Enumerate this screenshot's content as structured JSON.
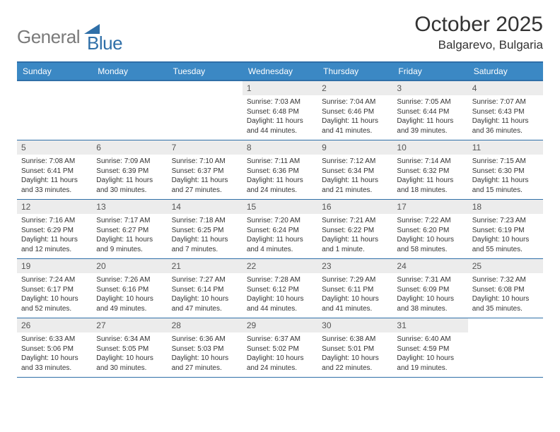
{
  "logo": {
    "part1": "General",
    "part2": "Blue"
  },
  "title": "October 2025",
  "subtitle": "Balgarevo, Bulgaria",
  "colors": {
    "header_bg": "#3b88c4",
    "border": "#2f6fa8",
    "daynum_bg": "#ececec",
    "logo_gray": "#7a7a7a",
    "logo_blue": "#2f6fa8"
  },
  "days_of_week": [
    "Sunday",
    "Monday",
    "Tuesday",
    "Wednesday",
    "Thursday",
    "Friday",
    "Saturday"
  ],
  "weeks": [
    [
      null,
      null,
      null,
      {
        "n": "1",
        "sunrise": "7:03 AM",
        "sunset": "6:48 PM",
        "daylight": "11 hours and 44 minutes."
      },
      {
        "n": "2",
        "sunrise": "7:04 AM",
        "sunset": "6:46 PM",
        "daylight": "11 hours and 41 minutes."
      },
      {
        "n": "3",
        "sunrise": "7:05 AM",
        "sunset": "6:44 PM",
        "daylight": "11 hours and 39 minutes."
      },
      {
        "n": "4",
        "sunrise": "7:07 AM",
        "sunset": "6:43 PM",
        "daylight": "11 hours and 36 minutes."
      }
    ],
    [
      {
        "n": "5",
        "sunrise": "7:08 AM",
        "sunset": "6:41 PM",
        "daylight": "11 hours and 33 minutes."
      },
      {
        "n": "6",
        "sunrise": "7:09 AM",
        "sunset": "6:39 PM",
        "daylight": "11 hours and 30 minutes."
      },
      {
        "n": "7",
        "sunrise": "7:10 AM",
        "sunset": "6:37 PM",
        "daylight": "11 hours and 27 minutes."
      },
      {
        "n": "8",
        "sunrise": "7:11 AM",
        "sunset": "6:36 PM",
        "daylight": "11 hours and 24 minutes."
      },
      {
        "n": "9",
        "sunrise": "7:12 AM",
        "sunset": "6:34 PM",
        "daylight": "11 hours and 21 minutes."
      },
      {
        "n": "10",
        "sunrise": "7:14 AM",
        "sunset": "6:32 PM",
        "daylight": "11 hours and 18 minutes."
      },
      {
        "n": "11",
        "sunrise": "7:15 AM",
        "sunset": "6:30 PM",
        "daylight": "11 hours and 15 minutes."
      }
    ],
    [
      {
        "n": "12",
        "sunrise": "7:16 AM",
        "sunset": "6:29 PM",
        "daylight": "11 hours and 12 minutes."
      },
      {
        "n": "13",
        "sunrise": "7:17 AM",
        "sunset": "6:27 PM",
        "daylight": "11 hours and 9 minutes."
      },
      {
        "n": "14",
        "sunrise": "7:18 AM",
        "sunset": "6:25 PM",
        "daylight": "11 hours and 7 minutes."
      },
      {
        "n": "15",
        "sunrise": "7:20 AM",
        "sunset": "6:24 PM",
        "daylight": "11 hours and 4 minutes."
      },
      {
        "n": "16",
        "sunrise": "7:21 AM",
        "sunset": "6:22 PM",
        "daylight": "11 hours and 1 minute."
      },
      {
        "n": "17",
        "sunrise": "7:22 AM",
        "sunset": "6:20 PM",
        "daylight": "10 hours and 58 minutes."
      },
      {
        "n": "18",
        "sunrise": "7:23 AM",
        "sunset": "6:19 PM",
        "daylight": "10 hours and 55 minutes."
      }
    ],
    [
      {
        "n": "19",
        "sunrise": "7:24 AM",
        "sunset": "6:17 PM",
        "daylight": "10 hours and 52 minutes."
      },
      {
        "n": "20",
        "sunrise": "7:26 AM",
        "sunset": "6:16 PM",
        "daylight": "10 hours and 49 minutes."
      },
      {
        "n": "21",
        "sunrise": "7:27 AM",
        "sunset": "6:14 PM",
        "daylight": "10 hours and 47 minutes."
      },
      {
        "n": "22",
        "sunrise": "7:28 AM",
        "sunset": "6:12 PM",
        "daylight": "10 hours and 44 minutes."
      },
      {
        "n": "23",
        "sunrise": "7:29 AM",
        "sunset": "6:11 PM",
        "daylight": "10 hours and 41 minutes."
      },
      {
        "n": "24",
        "sunrise": "7:31 AM",
        "sunset": "6:09 PM",
        "daylight": "10 hours and 38 minutes."
      },
      {
        "n": "25",
        "sunrise": "7:32 AM",
        "sunset": "6:08 PM",
        "daylight": "10 hours and 35 minutes."
      }
    ],
    [
      {
        "n": "26",
        "sunrise": "6:33 AM",
        "sunset": "5:06 PM",
        "daylight": "10 hours and 33 minutes."
      },
      {
        "n": "27",
        "sunrise": "6:34 AM",
        "sunset": "5:05 PM",
        "daylight": "10 hours and 30 minutes."
      },
      {
        "n": "28",
        "sunrise": "6:36 AM",
        "sunset": "5:03 PM",
        "daylight": "10 hours and 27 minutes."
      },
      {
        "n": "29",
        "sunrise": "6:37 AM",
        "sunset": "5:02 PM",
        "daylight": "10 hours and 24 minutes."
      },
      {
        "n": "30",
        "sunrise": "6:38 AM",
        "sunset": "5:01 PM",
        "daylight": "10 hours and 22 minutes."
      },
      {
        "n": "31",
        "sunrise": "6:40 AM",
        "sunset": "4:59 PM",
        "daylight": "10 hours and 19 minutes."
      },
      null
    ]
  ],
  "labels": {
    "sunrise": "Sunrise:",
    "sunset": "Sunset:",
    "daylight": "Daylight:"
  }
}
